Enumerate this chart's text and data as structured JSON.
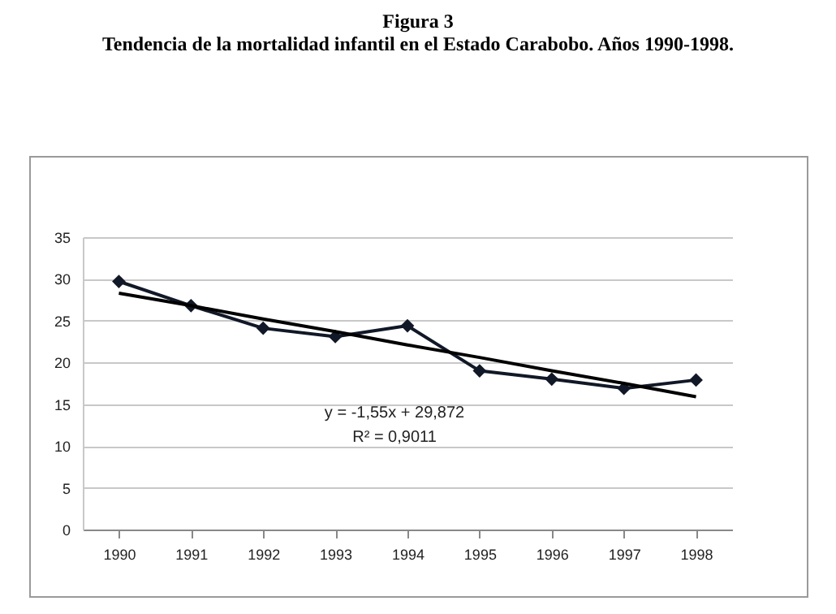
{
  "chart_data": {
    "type": "line",
    "title": "Figura 3",
    "subtitle": "Tendencia de la mortalidad infantil en el Estado Carabobo. Años 1990-1998.",
    "categories": [
      "1990",
      "1991",
      "1992",
      "1993",
      "1994",
      "1995",
      "1996",
      "1997",
      "1998"
    ],
    "series": [
      {
        "color": "#111827",
        "marker": "diamond",
        "values": [
          29.7,
          26.8,
          24.1,
          23.1,
          24.4,
          19.0,
          18.0,
          16.9,
          17.9
        ]
      },
      {
        "type": "line",
        "color": "#000000",
        "marker": "none",
        "values": [
          28.3,
          26.8,
          25.2,
          23.7,
          22.1,
          20.6,
          19.0,
          17.5,
          15.9
        ]
      }
    ],
    "annotations": [
      "y = -1,55x + 29,872",
      "R² = 0,9011"
    ],
    "ylim": [
      0,
      35
    ],
    "yticks": [
      0,
      5,
      10,
      15,
      20,
      25,
      30,
      35
    ],
    "grid": "y",
    "line_style": "solid"
  }
}
